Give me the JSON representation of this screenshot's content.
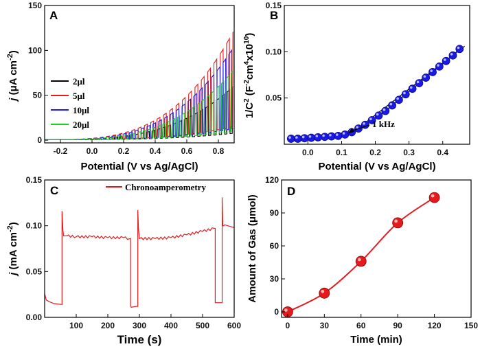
{
  "chart_data": [
    {
      "panel": "A",
      "type": "line",
      "xlabel": "Potential (V vs Ag/AgCl)",
      "ylabel": "j (μA cm⁻²)",
      "ylabel_parts": {
        "italic": "j",
        "rest": " (μA cm",
        "sup": "-2",
        "close": ")"
      },
      "xlim": [
        -0.3,
        0.9
      ],
      "ylim": [
        -3,
        150
      ],
      "xticks": [
        "-0.2",
        "0.0",
        "0.2",
        "0.4",
        "0.6",
        "0.8"
      ],
      "yticks": [
        "0",
        "50",
        "100",
        "150"
      ],
      "legend_position": "left-middle",
      "series": [
        {
          "name": "2μl",
          "color": "#000000",
          "peak": 60,
          "period": 0.034
        },
        {
          "name": "5μl",
          "color": "#e41a1c",
          "peak": 122,
          "period": 0.04
        },
        {
          "name": "10μl",
          "color": "#1a1ae6",
          "peak": 104,
          "period": 0.037
        },
        {
          "name": "20μl",
          "color": "#22cc22",
          "peak": 78,
          "period": 0.031
        }
      ]
    },
    {
      "panel": "B",
      "type": "scatter",
      "xlabel": "Potential (V vs Ag/AgCl)",
      "ylabel": "1/C² (F⁻² cm⁴ x10¹⁰)",
      "ylabel_parts": {
        "a": "1/C",
        "sup1": "2",
        "b": " (F",
        "sup2": "-2",
        "c": "cm",
        "sup3": "4",
        "d": "x10",
        "sup4": "10",
        "e": ")"
      },
      "xlim": [
        -0.07,
        0.48
      ],
      "ylim": [
        0,
        0.15
      ],
      "xticks": [
        "0.0",
        "0.1",
        "0.2",
        "0.3",
        "0.4"
      ],
      "yticks": [
        "0.05",
        "0.10",
        "0.15"
      ],
      "annotation": "1 kHz",
      "annotation_arrow_to": [
        0.12,
        0.012
      ],
      "fit_line": [
        [
          0.13,
          0.012
        ],
        [
          0.465,
          0.106
        ]
      ],
      "color": "#1a1ae6",
      "x": [
        -0.05,
        -0.03,
        -0.01,
        0.01,
        0.03,
        0.05,
        0.07,
        0.09,
        0.11,
        0.13,
        0.15,
        0.17,
        0.19,
        0.21,
        0.23,
        0.25,
        0.27,
        0.29,
        0.31,
        0.33,
        0.35,
        0.37,
        0.39,
        0.41,
        0.43,
        0.45
      ],
      "y": [
        0.006,
        0.006,
        0.0065,
        0.007,
        0.0075,
        0.008,
        0.0085,
        0.009,
        0.0105,
        0.013,
        0.017,
        0.021,
        0.026,
        0.031,
        0.036,
        0.042,
        0.048,
        0.054,
        0.06,
        0.066,
        0.072,
        0.078,
        0.084,
        0.09,
        0.096,
        0.103
      ]
    },
    {
      "panel": "C",
      "type": "line",
      "xlabel": "Time (s)",
      "ylabel": "j (mA cm⁻²)",
      "ylabel_parts": {
        "italic": "j",
        "rest": " (mA cm",
        "sup": "-2",
        "close": ")"
      },
      "xlim": [
        0,
        600
      ],
      "ylim": [
        0,
        0.15
      ],
      "xticks": [
        "100",
        "200",
        "300",
        "400",
        "500",
        "600"
      ],
      "yticks": [
        "0.00",
        "0.05",
        "0.10",
        "0.15"
      ],
      "legend": [
        "Chronoamperometry"
      ],
      "legend_position": "top-right",
      "color": "#e41a1c",
      "x": [
        0,
        5,
        15,
        30,
        55,
        55,
        58,
        60,
        70,
        100,
        150,
        200,
        250,
        272,
        272,
        274,
        290,
        295,
        295,
        297,
        300,
        350,
        400,
        450,
        500,
        540,
        540,
        562,
        562,
        564,
        567,
        570,
        580,
        600
      ],
      "y": [
        0.026,
        0.019,
        0.017,
        0.015,
        0.014,
        0.116,
        0.095,
        0.089,
        0.089,
        0.088,
        0.088,
        0.087,
        0.087,
        0.086,
        0.013,
        0.011,
        0.012,
        0.012,
        0.117,
        0.098,
        0.086,
        0.086,
        0.087,
        0.09,
        0.094,
        0.097,
        0.016,
        0.016,
        0.131,
        0.1,
        0.1,
        0.101,
        0.1,
        0.098
      ]
    },
    {
      "panel": "D",
      "type": "line",
      "xlabel": "Time (min)",
      "ylabel": "Amount of Gas (μmol)",
      "xlim": [
        -5,
        150
      ],
      "ylim": [
        -5,
        120
      ],
      "xticks": [
        "0",
        "30",
        "60",
        "90",
        "120",
        "150"
      ],
      "yticks": [
        "0",
        "30",
        "60",
        "90",
        "120"
      ],
      "color": "#e41a1c",
      "x": [
        0,
        30,
        60,
        90,
        120
      ],
      "y": [
        0,
        17,
        46,
        81,
        104
      ]
    }
  ]
}
